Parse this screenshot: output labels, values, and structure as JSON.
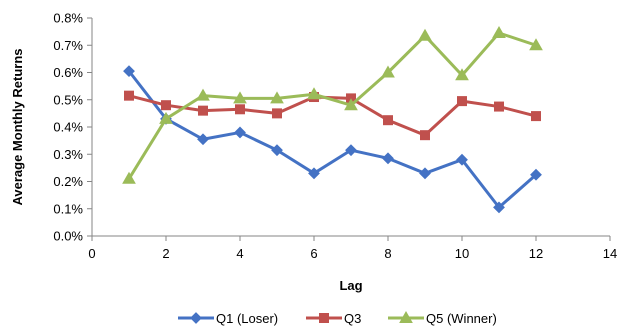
{
  "chart_data": {
    "type": "line",
    "title": "",
    "xlabel": "Lag",
    "ylabel": "Average  Monthly Returns",
    "xlim": [
      0,
      14
    ],
    "ylim": [
      0.0,
      0.8
    ],
    "x_ticks": [
      "0",
      "2",
      "4",
      "6",
      "8",
      "10",
      "12",
      "14"
    ],
    "y_ticks": [
      "0.0%",
      "0.1%",
      "0.2%",
      "0.3%",
      "0.4%",
      "0.5%",
      "0.6%",
      "0.7%",
      "0.8%"
    ],
    "grid": false,
    "legend_position": "bottom",
    "x": [
      1,
      2,
      3,
      4,
      5,
      6,
      7,
      8,
      9,
      10,
      11,
      12
    ],
    "series": [
      {
        "name": "Q1 (Loser)",
        "color": "#4472C4",
        "marker": "diamond",
        "values": [
          0.605,
          0.43,
          0.355,
          0.38,
          0.315,
          0.23,
          0.315,
          0.285,
          0.23,
          0.28,
          0.105,
          0.225
        ]
      },
      {
        "name": "Q3",
        "color": "#C0504D",
        "marker": "square",
        "values": [
          0.515,
          0.48,
          0.46,
          0.465,
          0.45,
          0.51,
          0.505,
          0.425,
          0.37,
          0.495,
          0.475,
          0.44
        ]
      },
      {
        "name": "Q5 (Winner)",
        "color": "#9BBB59",
        "marker": "triangle",
        "values": [
          0.21,
          0.43,
          0.515,
          0.505,
          0.505,
          0.52,
          0.48,
          0.6,
          0.735,
          0.59,
          0.745,
          0.7
        ]
      }
    ]
  }
}
